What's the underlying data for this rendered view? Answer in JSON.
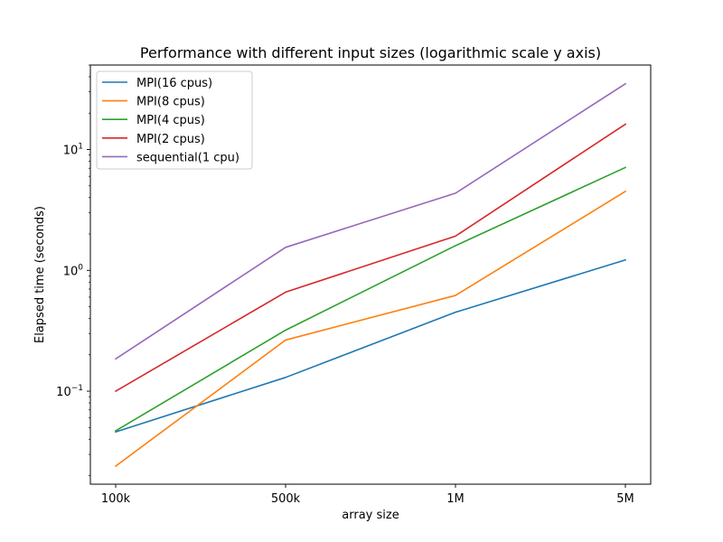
{
  "chart_data": {
    "type": "line",
    "title": "Performance with different input sizes (logarithmic scale y axis)",
    "xlabel": "array size",
    "ylabel": "Elapsed time (seconds)",
    "yscale": "log",
    "categories": [
      "100k",
      "500k",
      "1M",
      "5M"
    ],
    "ylim": [
      0.017,
      50
    ],
    "yticks": [
      {
        "value": 0.1,
        "base": "10",
        "exp": "−1"
      },
      {
        "value": 1,
        "base": "10",
        "exp": "0"
      },
      {
        "value": 10,
        "base": "10",
        "exp": "1"
      }
    ],
    "legend_position": "top-left",
    "grid": false,
    "series": [
      {
        "name": "MPI(16 cpus)",
        "color": "#1f77b4",
        "values": [
          0.046,
          0.13,
          0.45,
          1.22
        ]
      },
      {
        "name": "MPI(8 cpus)",
        "color": "#ff7f0e",
        "values": [
          0.024,
          0.265,
          0.62,
          4.5
        ]
      },
      {
        "name": "MPI(4 cpus)",
        "color": "#2ca02c",
        "values": [
          0.047,
          0.32,
          1.6,
          7.1
        ]
      },
      {
        "name": "MPI(2 cpus)",
        "color": "#d62728",
        "values": [
          0.1,
          0.66,
          1.92,
          16.2
        ]
      },
      {
        "name": "sequential(1 cpu)",
        "color": "#9467bd",
        "values": [
          0.185,
          1.55,
          4.35,
          35.0
        ]
      }
    ]
  }
}
